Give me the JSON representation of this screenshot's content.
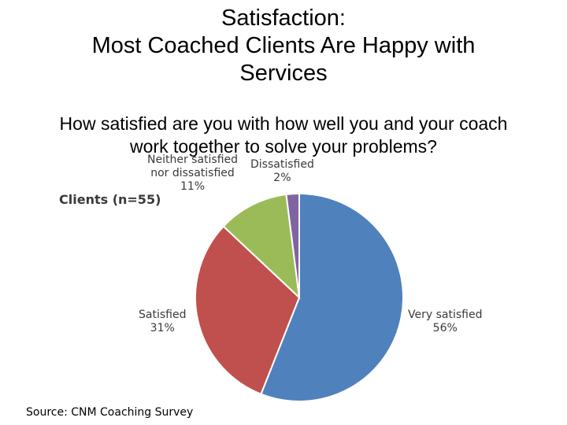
{
  "title": {
    "line1": "Satisfaction:",
    "line2": "Most Coached Clients Are Happy with",
    "line3": "Services"
  },
  "question": {
    "line1": "How satisfied are you with how well you and your coach",
    "line2": "work together to solve your problems?"
  },
  "sample_label": "Clients (n=55)",
  "source": "Source: CNM Coaching Survey",
  "chart_data": {
    "type": "pie",
    "title": "",
    "slices": [
      {
        "label": "Very satisfied",
        "value": 56,
        "value_label": "56%",
        "color": "#4f81bd"
      },
      {
        "label": "Satisfied",
        "value": 31,
        "value_label": "31%",
        "color": "#c0504d"
      },
      {
        "label_line1": "Neither satisfied",
        "label_line2": "nor dissatisfied",
        "label": "Neither satisfied nor dissatisfied",
        "value": 11,
        "value_label": "11%",
        "color": "#9bbb59"
      },
      {
        "label": "Dissatisfied",
        "value": 2,
        "value_label": "2%",
        "color": "#8064a2"
      }
    ]
  }
}
